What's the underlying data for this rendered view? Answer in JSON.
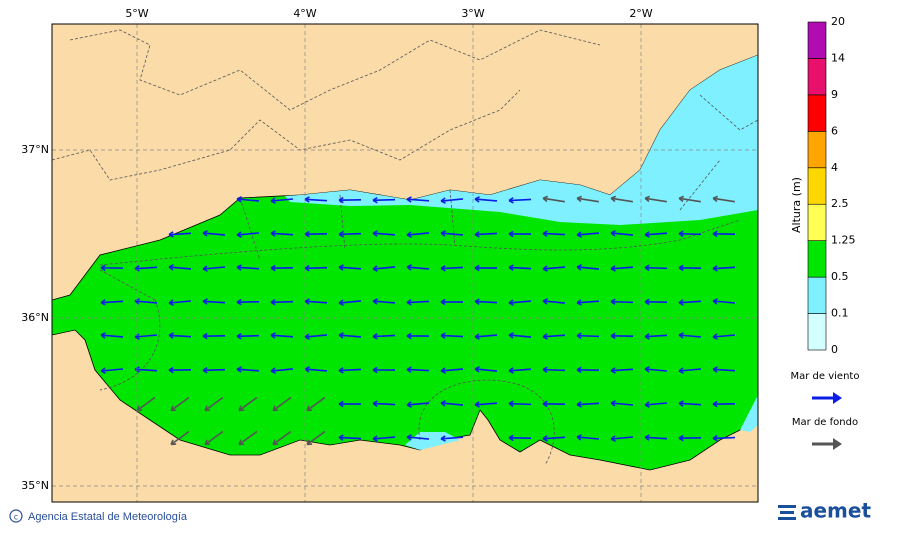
{
  "map": {
    "longitude_labels": [
      "5°W",
      "4°W",
      "3°W",
      "2°W"
    ],
    "latitude_labels": [
      "37°N",
      "36°N",
      "35°N"
    ]
  },
  "colorbar": {
    "title": "Altura (m)",
    "levels": [
      "0",
      "0.1",
      "0.5",
      "1.25",
      "2.5",
      "4",
      "6",
      "9",
      "14",
      "20"
    ],
    "colors": [
      "#d4ffff",
      "#7ff0ff",
      "#00e600",
      "#ffff55",
      "#ffd700",
      "#ffa500",
      "#ff0000",
      "#e8106c",
      "#b00cb0"
    ]
  },
  "legend": [
    {
      "label": "Mar de viento",
      "color": "#0a1ee6"
    },
    {
      "label": "Mar de fondo",
      "color": "#555555"
    }
  ],
  "footer": {
    "credit": "Agencia Estatal de Meteorología",
    "logo": "aemet"
  }
}
